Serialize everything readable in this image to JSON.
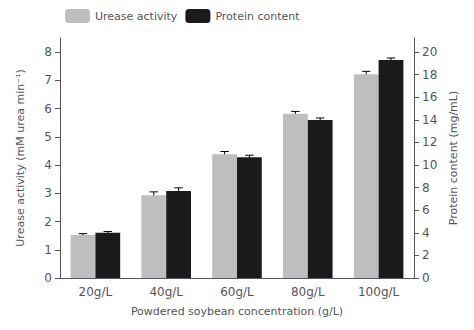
{
  "chart_data": {
    "type": "bar",
    "xlabel": "Powdered soybean concentration (g/L)",
    "ylabel": "Urease activity (mM urea min⁻¹)",
    "y2label": "Protein content (mg/mL)",
    "categories": [
      "20g/L",
      "40g/L",
      "60g/L",
      "80g/L",
      "100g/L"
    ],
    "series": [
      {
        "name": "Urease activity",
        "color": "#BEBEBE",
        "axis": "y",
        "values": [
          1.52,
          2.93,
          4.38,
          5.82,
          7.22
        ],
        "errors": [
          0.05,
          0.12,
          0.1,
          0.08,
          0.1
        ]
      },
      {
        "name": "Protein content",
        "color": "#1A1A1A",
        "axis": "y2",
        "values": [
          4.0,
          7.7,
          10.7,
          14.0,
          19.3
        ],
        "errors": [
          0.12,
          0.28,
          0.17,
          0.17,
          0.18
        ]
      }
    ],
    "ylim": [
      0,
      8.5
    ],
    "yticks": [
      0,
      1,
      2,
      3,
      4,
      5,
      6,
      7,
      8
    ],
    "y2lim": [
      0,
      21.25
    ],
    "y2ticks": [
      0,
      2,
      4,
      6,
      8,
      10,
      12,
      14,
      16,
      18,
      20
    ],
    "legend": "upper left",
    "grid": false
  }
}
